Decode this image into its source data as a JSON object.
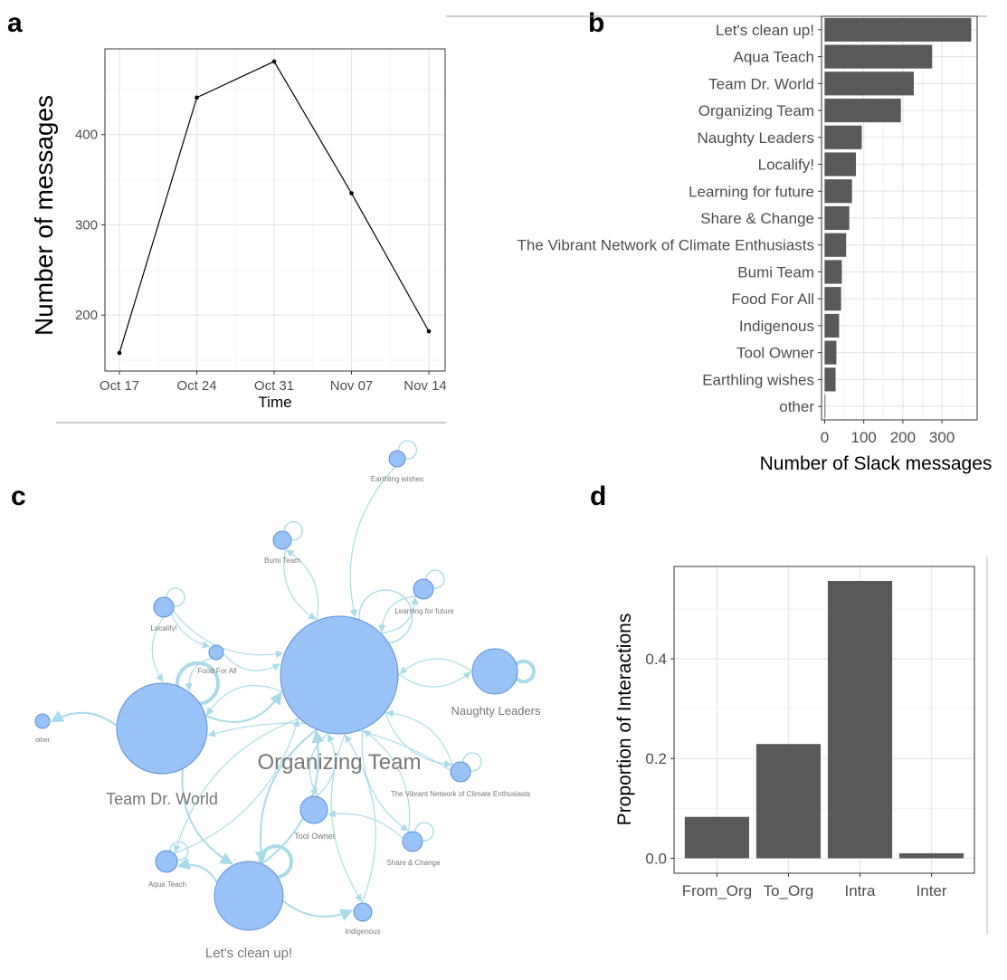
{
  "panels": {
    "a": "a",
    "b": "b",
    "c": "c",
    "d": "d"
  },
  "chart_data": [
    {
      "panel": "a",
      "type": "line",
      "x": [
        "Oct 17",
        "Oct 24",
        "Oct 31",
        "Nov 07",
        "Nov 14"
      ],
      "y": [
        158,
        441,
        481,
        335,
        182
      ],
      "xlabel": "Time",
      "ylabel": "Number of messages",
      "ylim": [
        138,
        495
      ],
      "yticks": [
        200,
        300,
        400
      ],
      "grid": true,
      "color": "#000000"
    },
    {
      "panel": "b",
      "type": "bar",
      "orientation": "horizontal",
      "categories": [
        "Let's clean up!",
        "Aqua Teach",
        "Team Dr. World",
        "Organizing Team",
        "Naughty Leaders",
        "Localify!",
        "Learning for future",
        "Share & Change",
        "The Vibrant Network of Climate Enthusiasts",
        "Bumi Team",
        "Food For All",
        "Indigenous",
        "Tool Owner",
        "Earthling wishes",
        "other"
      ],
      "values": [
        375,
        275,
        228,
        195,
        95,
        80,
        70,
        63,
        55,
        44,
        42,
        37,
        30,
        28,
        2
      ],
      "xlabel": "Number of Slack messages",
      "ylabel": "",
      "xlim": [
        -8,
        390
      ],
      "xticks": [
        0,
        100,
        200,
        300
      ],
      "grid": true,
      "bar_color": "#595959"
    },
    {
      "panel": "c",
      "type": "network",
      "nodes": [
        {
          "id": "org",
          "label": "Organizing Team",
          "size": "large"
        },
        {
          "id": "tdw",
          "label": "Team Dr. World",
          "size": "large"
        },
        {
          "id": "lcu",
          "label": "Let's clean up!",
          "size": "large"
        },
        {
          "id": "nl",
          "label": "Naughty Leaders",
          "size": "medium"
        },
        {
          "id": "ew",
          "label": "Earthling wishes",
          "size": "small"
        },
        {
          "id": "bt",
          "label": "Bumi Team",
          "size": "small"
        },
        {
          "id": "lff",
          "label": "Learning for future",
          "size": "small"
        },
        {
          "id": "loc",
          "label": "Localify!",
          "size": "small"
        },
        {
          "id": "ffa",
          "label": "Food For All",
          "size": "small"
        },
        {
          "id": "oth",
          "label": "other",
          "size": "small"
        },
        {
          "id": "vn",
          "label": "The Vibrant Network of Climate Enthusiasts",
          "size": "small"
        },
        {
          "id": "to",
          "label": "Tool Owner",
          "size": "small"
        },
        {
          "id": "sc",
          "label": "Share & Change",
          "size": "small"
        },
        {
          "id": "aq",
          "label": "Aqua Teach",
          "size": "small"
        },
        {
          "id": "ind",
          "label": "Indigenous",
          "size": "small"
        }
      ],
      "edges": [
        [
          "ew",
          "org"
        ],
        [
          "bt",
          "org"
        ],
        [
          "org",
          "bt"
        ],
        [
          "lff",
          "org"
        ],
        [
          "org",
          "lff"
        ],
        [
          "loc",
          "org"
        ],
        [
          "ffa",
          "org"
        ],
        [
          "loc",
          "ffa"
        ],
        [
          "nl",
          "org"
        ],
        [
          "org",
          "nl"
        ],
        [
          "tdw",
          "org"
        ],
        [
          "org",
          "tdw"
        ],
        [
          "tdw",
          "oth"
        ],
        [
          "loc",
          "tdw"
        ],
        [
          "ffa",
          "tdw"
        ],
        [
          "vn",
          "org"
        ],
        [
          "org",
          "vn"
        ],
        [
          "vn",
          "tdw"
        ],
        [
          "to",
          "org"
        ],
        [
          "org",
          "to"
        ],
        [
          "sc",
          "org"
        ],
        [
          "org",
          "sc"
        ],
        [
          "sc",
          "to"
        ],
        [
          "aq",
          "org"
        ],
        [
          "org",
          "aq"
        ],
        [
          "lcu",
          "org"
        ],
        [
          "org",
          "lcu"
        ],
        [
          "lcu",
          "aq"
        ],
        [
          "ind",
          "org"
        ],
        [
          "org",
          "ind"
        ],
        [
          "lcu",
          "ind"
        ],
        [
          "tdw",
          "lcu"
        ]
      ],
      "self_loops": [
        "ew",
        "bt",
        "lff",
        "loc",
        "nl",
        "vn",
        "sc",
        "aq",
        "lcu",
        "org",
        "tdw"
      ],
      "node_color": "#99c2f7",
      "node_stroke": "#5b8fdc",
      "edge_color": "#a9dbe8"
    },
    {
      "panel": "d",
      "type": "bar",
      "categories": [
        "From_Org",
        "To_Org",
        "Intra",
        "Inter"
      ],
      "values": [
        0.083,
        0.229,
        0.556,
        0.01
      ],
      "xlabel": "",
      "ylabel": "Proportion of Interactions",
      "ylim": [
        -0.03,
        0.585
      ],
      "yticks": [
        "0.0",
        "0.2",
        "0.4"
      ],
      "grid": true,
      "bar_color": "#595959"
    }
  ]
}
